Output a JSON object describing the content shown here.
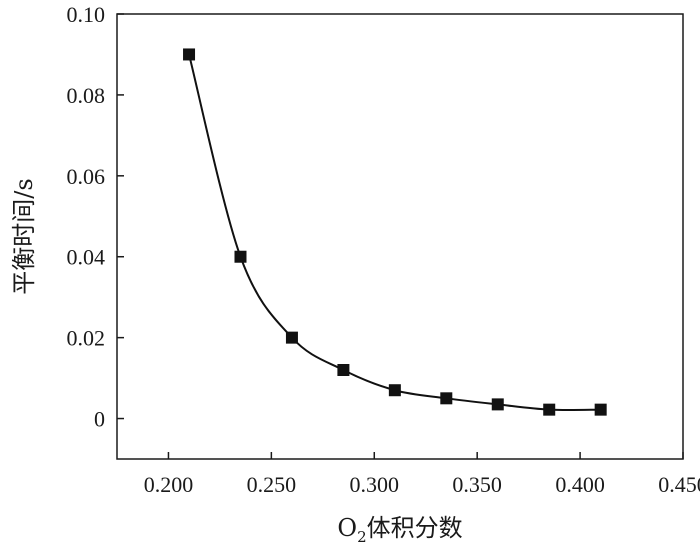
{
  "chart_data": {
    "type": "line",
    "title": "",
    "xlabel_main": "O",
    "xlabel_sub": "2",
    "xlabel_rest": "体积分数",
    "ylabel": "平衡时间/s",
    "xlim": [
      0.175,
      0.45
    ],
    "ylim": [
      -0.01,
      0.1
    ],
    "x_ticks": [
      0.2,
      0.25,
      0.3,
      0.35,
      0.4,
      0.45
    ],
    "x_tick_labels": [
      "0.200",
      "0.250",
      "0.300",
      "0.350",
      "0.400",
      "0.450"
    ],
    "y_ticks": [
      0,
      0.02,
      0.04,
      0.06,
      0.08,
      0.1
    ],
    "y_tick_labels": [
      "0",
      "0.02",
      "0.04",
      "0.06",
      "0.08",
      "0.10"
    ],
    "grid": false,
    "legend": "none",
    "marker": "square",
    "series_color": "#111111",
    "x": [
      0.21,
      0.235,
      0.26,
      0.285,
      0.31,
      0.335,
      0.36,
      0.385,
      0.41
    ],
    "y": [
      0.09,
      0.04,
      0.02,
      0.012,
      0.007,
      0.005,
      0.0035,
      0.0022,
      0.0022
    ]
  }
}
